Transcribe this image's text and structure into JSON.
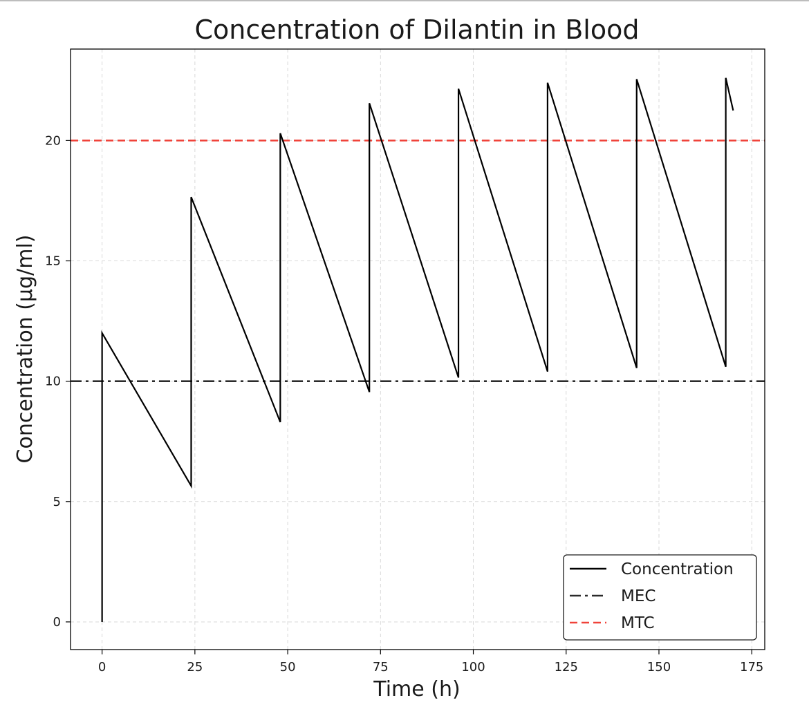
{
  "chart_data": {
    "type": "line",
    "title": "Concentration of Dilantin in Blood",
    "xlabel": "Time (h)",
    "ylabel": "Concentration (µg/ml)",
    "xlim": [
      -8.5,
      178.5
    ],
    "ylim": [
      -1.15,
      23.8
    ],
    "xticks": [
      0,
      25,
      50,
      75,
      100,
      125,
      150,
      175
    ],
    "yticks": [
      0,
      5,
      10,
      15,
      20
    ],
    "grid": true,
    "legend_position": "lower-right",
    "series": [
      {
        "name": "Concentration",
        "style": "solid",
        "color": "#000000",
        "dosing_interval_h": 24,
        "end_time_h": 170,
        "points": [
          [
            0,
            0
          ],
          [
            0,
            12.0
          ],
          [
            24,
            5.65
          ],
          [
            24,
            17.65
          ],
          [
            48,
            8.3
          ],
          [
            48,
            20.3
          ],
          [
            72,
            9.55
          ],
          [
            72,
            21.55
          ],
          [
            96,
            10.15
          ],
          [
            96,
            22.15
          ],
          [
            120,
            10.4
          ],
          [
            120,
            22.4
          ],
          [
            144,
            10.55
          ],
          [
            144,
            22.55
          ],
          [
            168,
            10.6
          ],
          [
            168,
            22.6
          ],
          [
            170,
            21.25
          ]
        ]
      },
      {
        "name": "MEC",
        "style": "dashdot",
        "color": "#2b2b2b",
        "y": 10
      },
      {
        "name": "MTC",
        "style": "dashed",
        "color": "#f0433a",
        "y": 20
      }
    ]
  }
}
